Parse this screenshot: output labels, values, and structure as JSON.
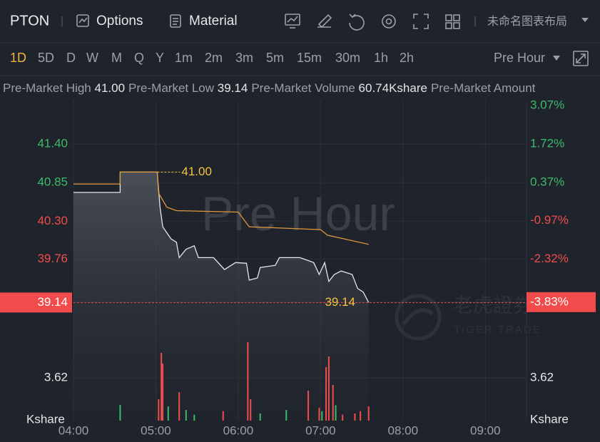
{
  "toolbar": {
    "symbol": "PTON",
    "options": "Options",
    "material": "Material",
    "layout_name": "未命名图表布局"
  },
  "periods": {
    "items": [
      "1D",
      "5D",
      "D",
      "W",
      "M",
      "Q",
      "Y",
      "1m",
      "2m",
      "3m",
      "5m",
      "15m",
      "30m",
      "1h",
      "2h"
    ],
    "selected_index": 0
  },
  "session": "Pre Hour",
  "stats": [
    {
      "label": "Pre-Market High",
      "value": "41.00"
    },
    {
      "label": "Pre-Market Low",
      "value": "39.14"
    },
    {
      "label": "Pre-Market Volume",
      "value": "60.74Kshare"
    },
    {
      "label": "Pre-Market Amount"
    }
  ],
  "chart_data": {
    "type": "line",
    "watermark": "Pre Hour",
    "logo": {
      "cn": "老虎證券",
      "en": "TIGER TRADE"
    },
    "xlim": [
      "04:00",
      "09:30"
    ],
    "xticks": [
      "04:00",
      "05:00",
      "06:00",
      "07:00",
      "08:00",
      "09:00"
    ],
    "ylim": [
      38.93,
      41.95
    ],
    "yticks": [
      {
        "value": 41.4,
        "label": "41.40"
      },
      {
        "value": 40.85,
        "label": "40.85"
      },
      {
        "value": 40.3,
        "label": "40.30"
      },
      {
        "value": 39.76,
        "label": "39.76"
      }
    ],
    "ytick_colors": [
      "#3dbb6c",
      "#3dbb6c",
      "#f04d4d",
      "#f04d4d"
    ],
    "y2lim": [
      -4.36,
      3.07
    ],
    "y2ticks": [
      {
        "value": 3.07,
        "label": "3.07%"
      },
      {
        "value": 1.72,
        "label": "1.72%"
      },
      {
        "value": 0.37,
        "label": "0.37%"
      },
      {
        "value": -0.97,
        "label": "-0.97%"
      },
      {
        "value": -2.32,
        "label": "-2.32%"
      }
    ],
    "y2tick_colors": [
      "#3dbb6c",
      "#3dbb6c",
      "#3dbb6c",
      "#f04d4d",
      "#f04d4d"
    ],
    "grid": true,
    "series": [
      {
        "color": "#e6e6e6",
        "x": [
          "04:00",
          "04:34",
          "04:34",
          "05:01",
          "05:03",
          "05:05",
          "05:11",
          "05:15",
          "05:17",
          "05:22",
          "05:28",
          "05:31",
          "05:42",
          "05:50",
          "05:58",
          "06:06",
          "06:08",
          "06:14",
          "06:16",
          "06:27",
          "06:30",
          "06:45",
          "06:55",
          "06:59",
          "07:03",
          "07:06",
          "07:10",
          "07:15",
          "07:23",
          "07:27",
          "07:31",
          "07:35"
        ],
        "values": [
          40.71,
          40.71,
          41.0,
          41.0,
          40.51,
          40.22,
          40.05,
          40.0,
          39.78,
          39.9,
          39.95,
          39.78,
          39.78,
          39.61,
          39.71,
          39.7,
          39.46,
          39.49,
          39.64,
          39.67,
          39.78,
          39.78,
          39.71,
          39.54,
          39.71,
          39.44,
          39.54,
          39.59,
          39.54,
          39.34,
          39.29,
          39.14
        ]
      },
      {
        "color": "#e0983a",
        "x": [
          "04:00",
          "04:34",
          "04:34",
          "05:01",
          "05:02",
          "05:08",
          "05:15",
          "06:00",
          "06:08",
          "07:00",
          "07:05",
          "07:35"
        ],
        "values": [
          40.83,
          40.83,
          41.0,
          41.0,
          40.7,
          40.5,
          40.45,
          40.43,
          40.22,
          40.18,
          40.1,
          39.97
        ]
      }
    ],
    "high_annotation": {
      "x": "05:01",
      "value": {
        "value": 41.0,
        "label": "41.00"
      }
    },
    "last": {
      "x": "07:35",
      "value": {
        "value": 39.14,
        "label": "39.14"
      },
      "change": {
        "value": -3.83,
        "label": "-3.83%"
      }
    },
    "volume": {
      "x": [
        "04:34",
        "05:02",
        "05:04",
        "05:05",
        "05:09",
        "05:17",
        "05:22",
        "05:28",
        "05:49",
        "06:07",
        "06:09",
        "06:16",
        "06:35",
        "06:51",
        "06:59",
        "07:01",
        "07:04",
        "07:06",
        "07:09",
        "07:11",
        "07:16",
        "07:25",
        "07:29",
        "07:35"
      ],
      "values": [
        1.33,
        1.81,
        5.73,
        4.83,
        1.2,
        2.41,
        0.9,
        0.5,
        0.8,
        6.64,
        1.8,
        0.6,
        0.9,
        2.53,
        1.1,
        0.8,
        4.53,
        5.43,
        3.02,
        1.3,
        0.5,
        0.6,
        0.8,
        1.2
      ],
      "colors": [
        "#3dbb6c",
        "#f04d4d",
        "#f04d4d",
        "#f04d4d",
        "#3dbb6c",
        "#f04d4d",
        "#3dbb6c",
        "#3dbb6c",
        "#f04d4d",
        "#f04d4d",
        "#f04d4d",
        "#3dbb6c",
        "#3dbb6c",
        "#f04d4d",
        "#f04d4d",
        "#3dbb6c",
        "#f04d4d",
        "#f04d4d",
        "#f04d4d",
        "#3dbb6c",
        "#f04d4d",
        "#f04d4d",
        "#f04d4d",
        "#f04d4d"
      ],
      "ylim": [
        0,
        7.24
      ],
      "yticks": [
        {
          "value": 3.62,
          "label": "3.62"
        }
      ],
      "unit": "Kshare"
    }
  }
}
